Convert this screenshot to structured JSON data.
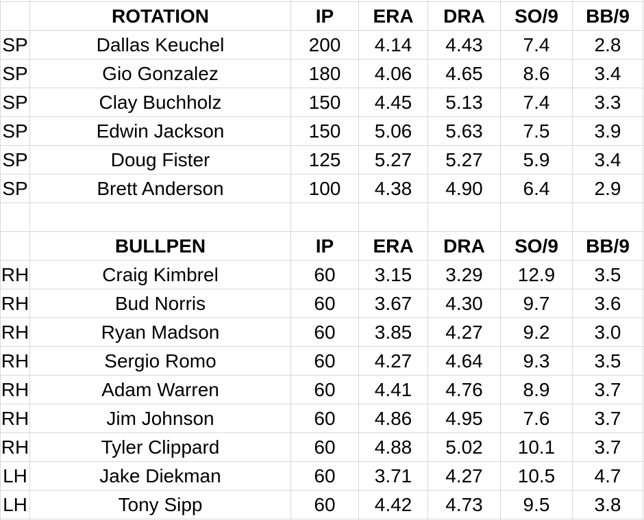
{
  "grid": {
    "background": "#ffffff",
    "border_color": "#d8d8d8",
    "text_color": "#000000"
  },
  "stat_headers": {
    "ip": "IP",
    "era": "ERA",
    "dra": "DRA",
    "so9": "SO/9",
    "bb9": "BB/9"
  },
  "sections": [
    {
      "title": "ROTATION",
      "rows": [
        {
          "role": "SP",
          "name": "Dallas Keuchel",
          "ip": "200",
          "era": "4.14",
          "dra": "4.43",
          "so9": "7.4",
          "bb9": "2.8"
        },
        {
          "role": "SP",
          "name": "Gio Gonzalez",
          "ip": "180",
          "era": "4.06",
          "dra": "4.65",
          "so9": "8.6",
          "bb9": "3.4"
        },
        {
          "role": "SP",
          "name": "Clay Buchholz",
          "ip": "150",
          "era": "4.45",
          "dra": "5.13",
          "so9": "7.4",
          "bb9": "3.3"
        },
        {
          "role": "SP",
          "name": "Edwin Jackson",
          "ip": "150",
          "era": "5.06",
          "dra": "5.63",
          "so9": "7.5",
          "bb9": "3.9"
        },
        {
          "role": "SP",
          "name": "Doug Fister",
          "ip": "125",
          "era": "5.27",
          "dra": "5.27",
          "so9": "5.9",
          "bb9": "3.4"
        },
        {
          "role": "SP",
          "name": "Brett Anderson",
          "ip": "100",
          "era": "4.38",
          "dra": "4.90",
          "so9": "6.4",
          "bb9": "2.9"
        }
      ]
    },
    {
      "title": "BULLPEN",
      "rows": [
        {
          "role": "RH",
          "name": "Craig Kimbrel",
          "ip": "60",
          "era": "3.15",
          "dra": "3.29",
          "so9": "12.9",
          "bb9": "3.5"
        },
        {
          "role": "RH",
          "name": "Bud Norris",
          "ip": "60",
          "era": "3.67",
          "dra": "4.30",
          "so9": "9.7",
          "bb9": "3.6"
        },
        {
          "role": "RH",
          "name": "Ryan Madson",
          "ip": "60",
          "era": "3.85",
          "dra": "4.27",
          "so9": "9.2",
          "bb9": "3.0"
        },
        {
          "role": "RH",
          "name": "Sergio Romo",
          "ip": "60",
          "era": "4.27",
          "dra": "4.64",
          "so9": "9.3",
          "bb9": "3.5"
        },
        {
          "role": "RH",
          "name": "Adam Warren",
          "ip": "60",
          "era": "4.41",
          "dra": "4.76",
          "so9": "8.9",
          "bb9": "3.7"
        },
        {
          "role": "RH",
          "name": "Jim Johnson",
          "ip": "60",
          "era": "4.86",
          "dra": "4.95",
          "so9": "7.6",
          "bb9": "3.7"
        },
        {
          "role": "RH",
          "name": "Tyler Clippard",
          "ip": "60",
          "era": "4.88",
          "dra": "5.02",
          "so9": "10.1",
          "bb9": "3.7"
        },
        {
          "role": "LH",
          "name": "Jake Diekman",
          "ip": "60",
          "era": "3.71",
          "dra": "4.27",
          "so9": "10.5",
          "bb9": "4.7"
        },
        {
          "role": "LH",
          "name": "Tony Sipp",
          "ip": "60",
          "era": "4.42",
          "dra": "4.73",
          "so9": "9.5",
          "bb9": "3.8"
        }
      ]
    }
  ]
}
